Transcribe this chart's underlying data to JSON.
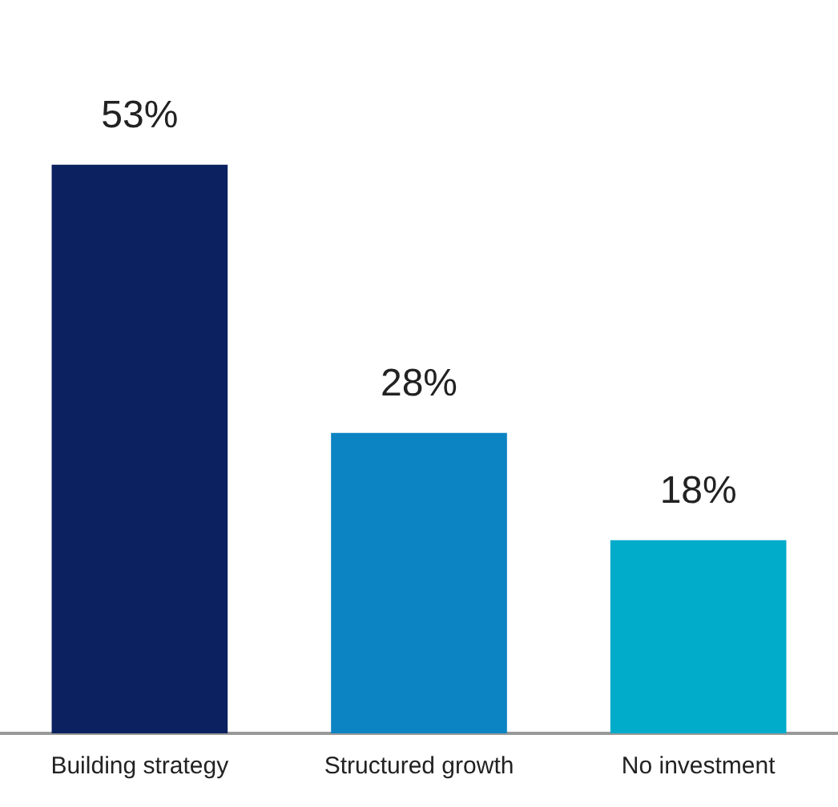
{
  "chart_data": {
    "type": "bar",
    "categories": [
      "Building strategy",
      "Structured growth",
      "No investment"
    ],
    "values": [
      53,
      28,
      18
    ],
    "colors": [
      "#0c2160",
      "#0c83c3",
      "#01abca"
    ],
    "value_labels": [
      "53%",
      "28%",
      "18%"
    ],
    "grid": false,
    "legend": false,
    "tick_labels": "x"
  }
}
